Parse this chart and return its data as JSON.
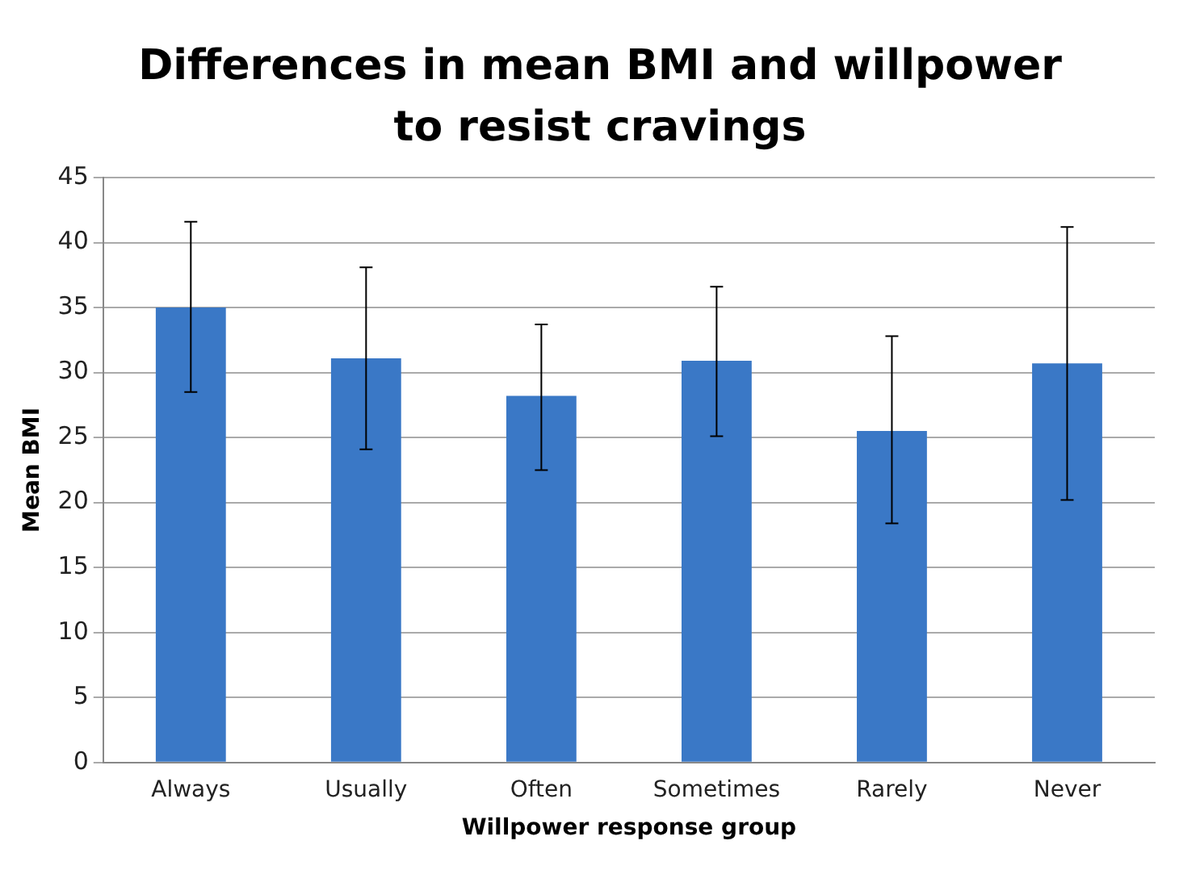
{
  "chart_data": {
    "type": "bar",
    "title": "Differences in mean BMI and willpower to resist cravings",
    "xlabel": "Willpower response group",
    "ylabel": "Mean BMI",
    "categories": [
      "Always",
      "Usually",
      "Often",
      "Sometimes",
      "Rarely",
      "Never"
    ],
    "values": [
      35.0,
      31.1,
      28.2,
      30.9,
      25.5,
      30.7
    ],
    "errors": [
      [
        28.5,
        41.6
      ],
      [
        24.1,
        38.1
      ],
      [
        22.5,
        33.7
      ],
      [
        25.1,
        36.6
      ],
      [
        18.4,
        32.8
      ],
      [
        20.2,
        41.2
      ]
    ],
    "color": "#3a78c6",
    "ylim": [
      0,
      45
    ],
    "yticks": [
      0,
      5,
      10,
      15,
      20,
      25,
      30,
      35,
      40,
      45
    ],
    "grid": "y",
    "legend": false
  }
}
